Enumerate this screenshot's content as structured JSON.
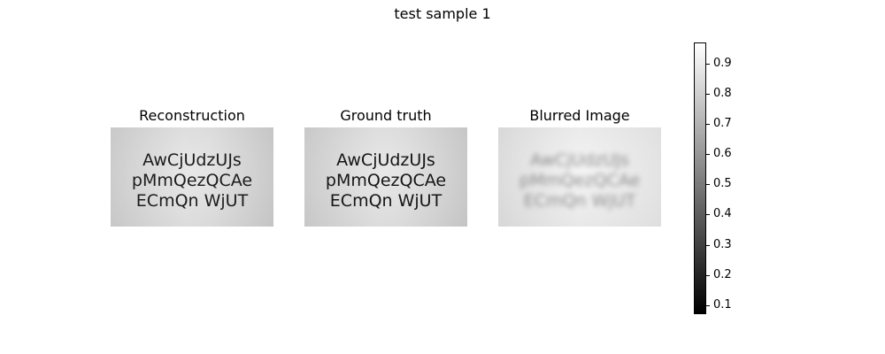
{
  "figure": {
    "title": "test sample 1"
  },
  "panels": [
    {
      "title": "Reconstruction",
      "lines": [
        "AwCjUdzUJs",
        "pMmQezQCAe",
        "ECmQn WjUT"
      ]
    },
    {
      "title": "Ground truth",
      "lines": [
        "AwCjUdzUJs",
        "pMmQezQCAe",
        "ECmQn WjUT"
      ]
    },
    {
      "title": "Blurred Image",
      "lines": [
        "AwCjUdzUJs",
        "pMmQezQCAe",
        "ECmQn WjUT"
      ]
    }
  ],
  "colorbar": {
    "colormap": "gray",
    "range": [
      0.07,
      0.97
    ],
    "ticks": [
      "0.9",
      "0.8",
      "0.7",
      "0.6",
      "0.5",
      "0.4",
      "0.3",
      "0.2",
      "0.1"
    ],
    "tick_values": [
      0.9,
      0.8,
      0.7,
      0.6,
      0.5,
      0.4,
      0.3,
      0.2,
      0.1
    ]
  }
}
